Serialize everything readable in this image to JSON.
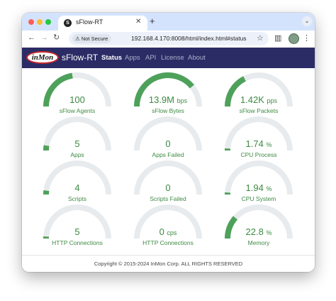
{
  "browser": {
    "tab_title": "sFlow-RT",
    "tab_favicon": "S",
    "security_label": "Not Secure",
    "url": "192.168.4.170:8008/html/index.html#status"
  },
  "app": {
    "logo_text": "inMon",
    "brand": "sFlow-RT",
    "nav": [
      "Status",
      "Apps",
      "API",
      "License",
      "About"
    ],
    "active_nav": "Status"
  },
  "colors": {
    "accent": "#4ea15a",
    "track": "#e8ebee",
    "header": "#2b2c66"
  },
  "gauges": [
    {
      "value": "100",
      "unit": "",
      "label": "sFlow Agents",
      "level": 0.45
    },
    {
      "value": "13.9M",
      "unit": "bps",
      "label": "sFlow Bytes",
      "level": 0.78
    },
    {
      "value": "1.42K",
      "unit": "pps",
      "label": "sFlow Packets",
      "level": 0.35
    },
    {
      "value": "5",
      "unit": "",
      "label": "Apps",
      "level": 0.05
    },
    {
      "value": "0",
      "unit": "",
      "label": "Apps Failed",
      "level": 0.0
    },
    {
      "value": "1.74",
      "unit": "%",
      "label": "CPU Process",
      "level": 0.02
    },
    {
      "value": "4",
      "unit": "",
      "label": "Scripts",
      "level": 0.04
    },
    {
      "value": "0",
      "unit": "",
      "label": "Scripts Failed",
      "level": 0.0
    },
    {
      "value": "1.94",
      "unit": "%",
      "label": "CPU System",
      "level": 0.02
    },
    {
      "value": "5",
      "unit": "",
      "label": "HTTP Connections",
      "level": 0.02
    },
    {
      "value": "0",
      "unit": "cps",
      "label": "HTTP Connections",
      "level": 0.0
    },
    {
      "value": "22.8",
      "unit": "%",
      "label": "Memory",
      "level": 0.23
    }
  ],
  "footer": {
    "copyright": "Copyright © 2015-2024 InMon Corp. ALL RIGHTS RESERVED"
  }
}
